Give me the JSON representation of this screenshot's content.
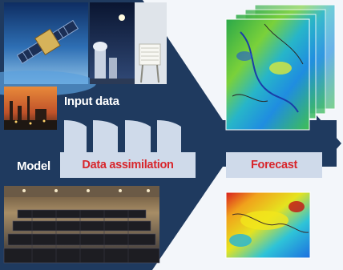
{
  "diagram": {
    "input_label": "Input data",
    "model_label": "Model",
    "assimilation_label": "Data assimilation",
    "forecast_label": "Forecast"
  },
  "colors": {
    "arrow": "#1f3a5f",
    "box_fill": "#cfdaea",
    "box_text": "#d8262c",
    "label_text": "#ffffff",
    "background": "#f3f6fa"
  },
  "photos": [
    "satellite-photo",
    "night-observatory-photo",
    "weather-shelter-photo",
    "industrial-plant-photo",
    "supercomputer-room-photo"
  ],
  "maps": [
    "forecast-map-stack",
    "forecast-map-global"
  ]
}
